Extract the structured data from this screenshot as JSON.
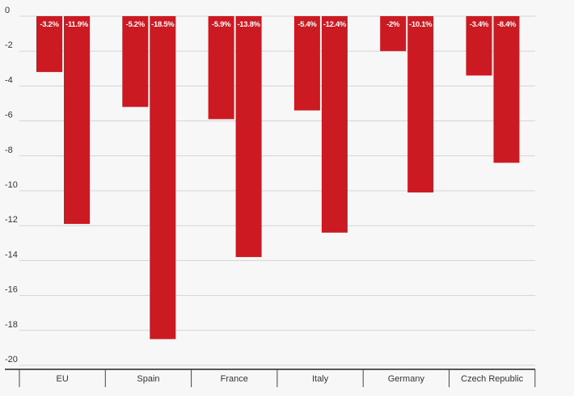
{
  "chart_data": {
    "type": "bar",
    "categories": [
      "EU",
      "Spain",
      "France",
      "Italy",
      "Germany",
      "Czech Republic"
    ],
    "series": [
      {
        "values": [
          -3.2,
          -5.2,
          -5.9,
          -5.4,
          -2.0,
          -3.4
        ],
        "labels": [
          "-3.2%",
          "-5.2%",
          "-5.9%",
          "-5.4%",
          "-2%",
          "-3.4%"
        ]
      },
      {
        "values": [
          -11.9,
          -18.5,
          -13.8,
          -12.4,
          -10.1,
          -8.4
        ],
        "labels": [
          "-11.9%",
          "-18.5%",
          "-13.8%",
          "-12.4%",
          "-10.1%",
          "-8.4%"
        ]
      }
    ],
    "yticks": [
      0,
      -2,
      -4,
      -6,
      -8,
      -10,
      -12,
      -14,
      -16,
      -18,
      -20
    ],
    "ylim": [
      -20,
      0
    ],
    "bar_color": "#cc1a22",
    "grid": true
  }
}
